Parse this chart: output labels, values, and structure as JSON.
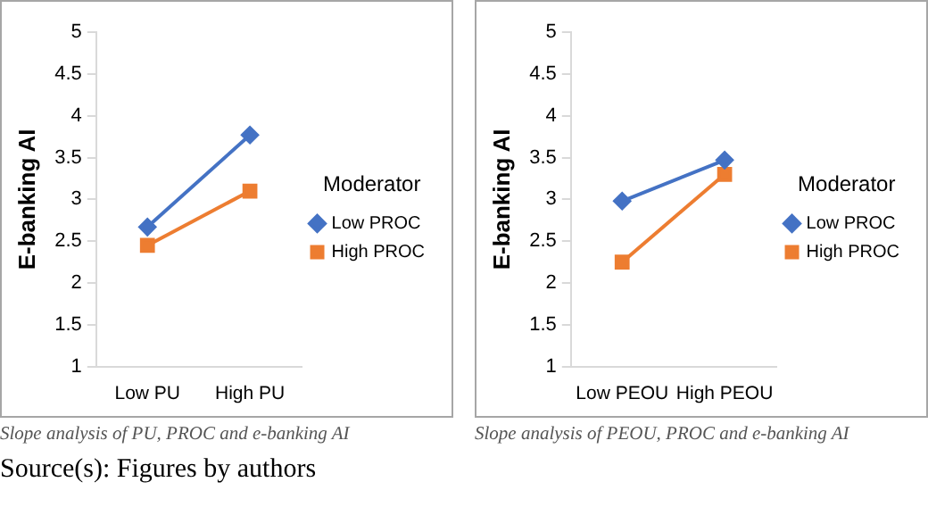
{
  "chart_data": [
    {
      "type": "line",
      "categories": [
        "Low PU",
        "High PU"
      ],
      "ylabel": "E-banking AI",
      "legend_title": "Moderator",
      "legend": "right",
      "ylim": [
        1,
        5
      ],
      "yticks": [
        1,
        1.5,
        2,
        2.5,
        3,
        3.5,
        4,
        4.5,
        5
      ],
      "grid": false,
      "series": [
        {
          "name": "Low PROC",
          "color": "#4472c4",
          "marker": "diamond",
          "values": [
            2.67,
            3.77
          ]
        },
        {
          "name": "High PROC",
          "color": "#ed7d31",
          "marker": "square",
          "values": [
            2.45,
            3.1
          ]
        }
      ],
      "annotations": [
        "Slope analysis of PU, PROC and e-banking AI",
        "Source(s): Figures by authors"
      ]
    },
    {
      "type": "line",
      "categories": [
        "Low PEOU",
        "High PEOU"
      ],
      "ylabel": "E-banking AI",
      "legend_title": "Moderator",
      "legend": "right",
      "ylim": [
        1,
        5
      ],
      "yticks": [
        1,
        1.5,
        2,
        2.5,
        3,
        3.5,
        4,
        4.5,
        5
      ],
      "grid": false,
      "series": [
        {
          "name": "Low PROC",
          "color": "#4472c4",
          "marker": "diamond",
          "values": [
            2.98,
            3.47
          ]
        },
        {
          "name": "High PROC",
          "color": "#ed7d31",
          "marker": "square",
          "values": [
            2.25,
            3.3
          ]
        }
      ],
      "annotations": [
        "Slope analysis of PEOU, PROC and e-banking AI"
      ]
    }
  ]
}
